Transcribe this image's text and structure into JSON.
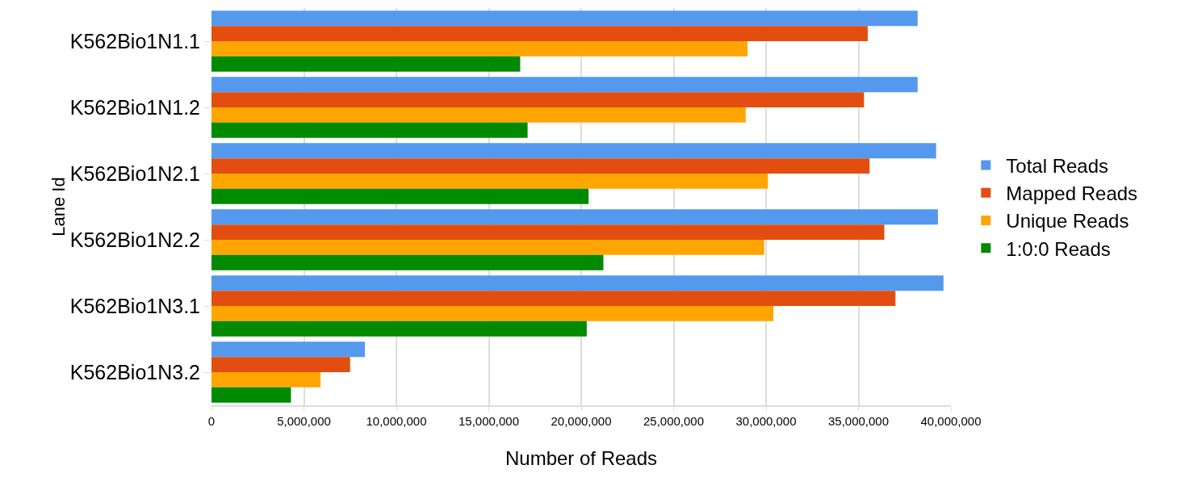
{
  "chart_data": {
    "type": "bar",
    "orientation": "horizontal",
    "xlabel": "Number of Reads",
    "ylabel": "Lane Id",
    "categories": [
      "K562Bio1N1.1",
      "K562Bio1N1.2",
      "K562Bio1N2.1",
      "K562Bio1N2.2",
      "K562Bio1N3.1",
      "K562Bio1N3.2"
    ],
    "series": [
      {
        "name": "Total Reads",
        "color": "#5599ee",
        "values": [
          38200000,
          38200000,
          39200000,
          39300000,
          39600000,
          8300000
        ]
      },
      {
        "name": "Mapped Reads",
        "color": "#e34d0f",
        "values": [
          35500000,
          35300000,
          35600000,
          36400000,
          37000000,
          7500000
        ]
      },
      {
        "name": "Unique Reads",
        "color": "#ffa500",
        "values": [
          29000000,
          28900000,
          30100000,
          29900000,
          30400000,
          5900000
        ]
      },
      {
        "name": "1:0:0 Reads",
        "color": "#008a00",
        "values": [
          16700000,
          17100000,
          20400000,
          21200000,
          20300000,
          4300000
        ]
      }
    ],
    "xlim": [
      0,
      40000000
    ],
    "xticks": [
      0,
      {
        "value": 5000000,
        "label": "5,000,000"
      },
      {
        "value": 10000000,
        "label": "10,000,000"
      },
      {
        "value": 15000000,
        "label": "15,000,000"
      },
      {
        "value": 20000000,
        "label": "20,000,000"
      },
      {
        "value": 25000000,
        "label": "25,000,000"
      },
      {
        "value": 30000000,
        "label": "30,000,000"
      },
      {
        "value": 35000000,
        "label": "35,000,000"
      },
      {
        "value": 40000000,
        "label": "40,000,000"
      }
    ],
    "grid": "x",
    "legend": "right"
  }
}
